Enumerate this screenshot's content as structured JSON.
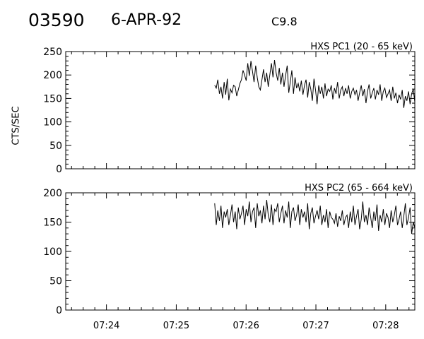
{
  "header": {
    "event_id": "03590",
    "date": "6-APR-92",
    "flare_class": "C9.8"
  },
  "chart_data": [
    {
      "type": "line",
      "title": "HXS PC1 (20 - 65 keV)",
      "ylabel": "CTS/SEC",
      "xlabel": "",
      "xlim": [
        "07:23:25",
        "07:28:25"
      ],
      "ylim": [
        0,
        250
      ],
      "yticks": [
        0,
        50,
        100,
        150,
        200,
        250
      ],
      "xticks": [
        "07:24",
        "07:25",
        "07:26",
        "07:27",
        "07:28"
      ],
      "series": [
        {
          "x_start": "07:25:33",
          "x_end": "07:28:25",
          "values": [
            178,
            172,
            190,
            160,
            175,
            150,
            185,
            158,
            192,
            146,
            170,
            162,
            178,
            175,
            155,
            168,
            182,
            190,
            210,
            200,
            188,
            225,
            198,
            230,
            208,
            185,
            220,
            195,
            175,
            168,
            190,
            212,
            185,
            205,
            175,
            200,
            225,
            195,
            232,
            205,
            188,
            215,
            180,
            205,
            175,
            198,
            220,
            162,
            185,
            210,
            160,
            195,
            172,
            182,
            165,
            188,
            158,
            178,
            190,
            152,
            185,
            170,
            145,
            192,
            168,
            138,
            178,
            160,
            175,
            150,
            182,
            155,
            170,
            165,
            178,
            148,
            172,
            160,
            185,
            150,
            168,
            175,
            155,
            172,
            160,
            178,
            150,
            165,
            172,
            158,
            168,
            145,
            162,
            178,
            155,
            170,
            140,
            165,
            180,
            150,
            162,
            172,
            148,
            168,
            158,
            180,
            145,
            165,
            172,
            152,
            160,
            168,
            145,
            175,
            150,
            162,
            140,
            158,
            148,
            168,
            130,
            155,
            145,
            165,
            138,
            160,
            170,
            142
          ]
        }
      ]
    },
    {
      "type": "line",
      "title": "HXS PC2 (65 - 664 keV)",
      "ylabel": "",
      "xlabel": "",
      "xlim": [
        "07:23:25",
        "07:28:25"
      ],
      "ylim": [
        0,
        200
      ],
      "yticks": [
        0,
        50,
        100,
        150,
        200
      ],
      "xticks": [
        "07:24",
        "07:25",
        "07:26",
        "07:27",
        "07:28"
      ],
      "series": [
        {
          "x_start": "07:25:33",
          "x_end": "07:28:25",
          "values": [
            182,
            145,
            170,
            152,
            178,
            140,
            168,
            158,
            172,
            145,
            162,
            180,
            150,
            168,
            138,
            175,
            155,
            165,
            178,
            145,
            172,
            160,
            185,
            150,
            168,
            175,
            140,
            182,
            160,
            170,
            148,
            178,
            155,
            188,
            162,
            150,
            180,
            145,
            172,
            168,
            182,
            150,
            165,
            178,
            148,
            170,
            158,
            185,
            140,
            168,
            175,
            152,
            162,
            180,
            145,
            172,
            158,
            168,
            150,
            182,
            138,
            165,
            175,
            148,
            160,
            170,
            155,
            178,
            145,
            162,
            150,
            172,
            140,
            168,
            158,
            155,
            148,
            165,
            142,
            160,
            152,
            170,
            145,
            158,
            162,
            140,
            168,
            150,
            178,
            145,
            160,
            172,
            138,
            155,
            185,
            150,
            162,
            145,
            175,
            158,
            140,
            168,
            152,
            180,
            135,
            162,
            150,
            172,
            145,
            165,
            158,
            140,
            170,
            150,
            162,
            178,
            145,
            155,
            168,
            140,
            160,
            182,
            145,
            158,
            175,
            130,
            150,
            140
          ]
        }
      ]
    }
  ]
}
